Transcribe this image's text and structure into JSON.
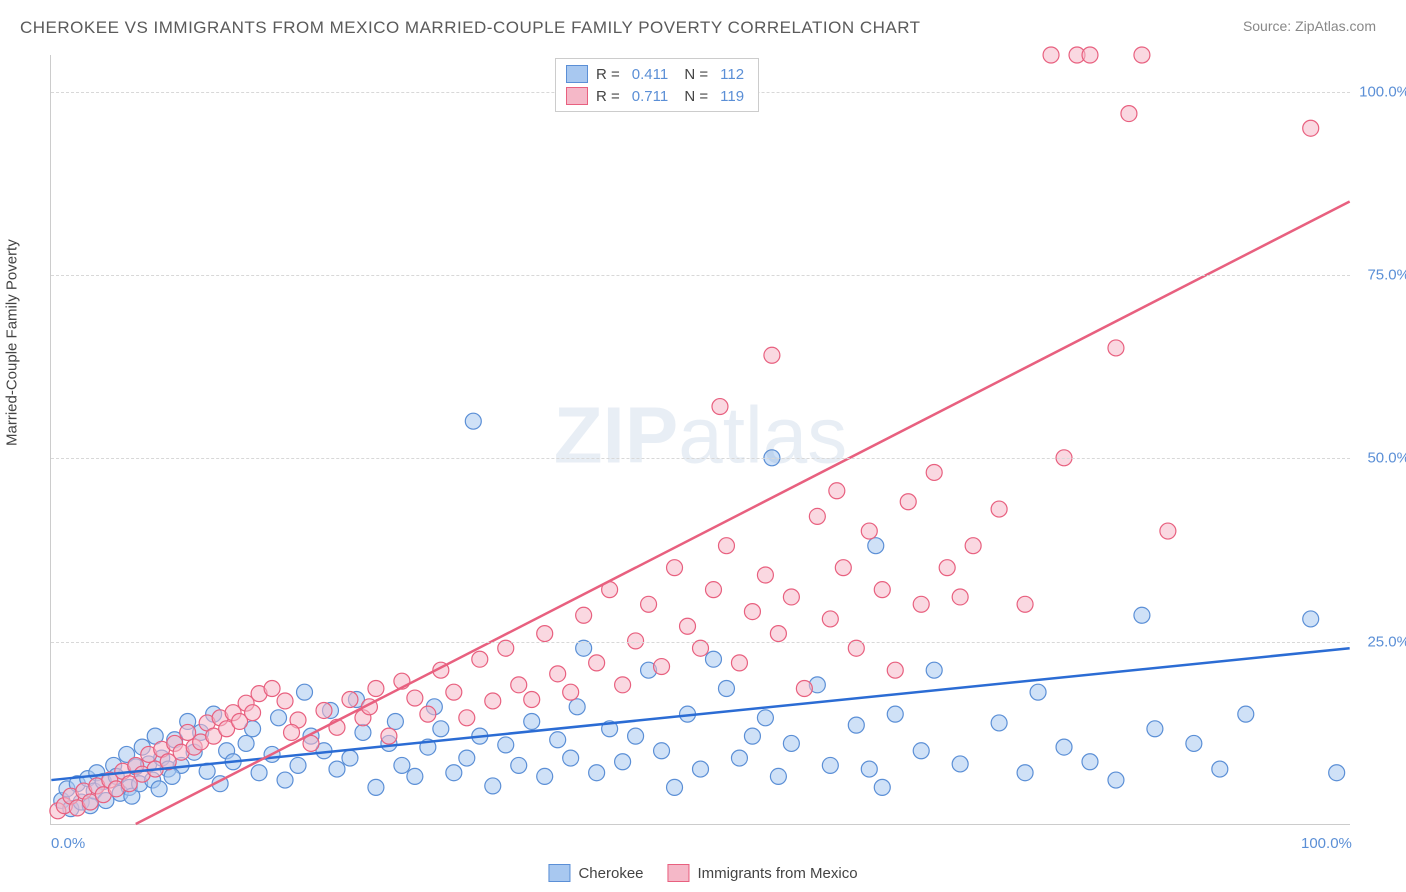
{
  "title": "CHEROKEE VS IMMIGRANTS FROM MEXICO MARRIED-COUPLE FAMILY POVERTY CORRELATION CHART",
  "source": "Source: ZipAtlas.com",
  "watermark": "ZIPatlas",
  "y_axis_label": "Married-Couple Family Poverty",
  "chart": {
    "type": "scatter",
    "xlim": [
      0,
      100
    ],
    "ylim": [
      0,
      105
    ],
    "x_ticks": [
      {
        "v": 0,
        "label": "0.0%"
      },
      {
        "v": 100,
        "label": "100.0%"
      }
    ],
    "y_ticks": [
      {
        "v": 25,
        "label": "25.0%"
      },
      {
        "v": 50,
        "label": "50.0%"
      },
      {
        "v": 75,
        "label": "75.0%"
      },
      {
        "v": 100,
        "label": "100.0%"
      }
    ],
    "grid_color": "#d8d8d8",
    "background_color": "#ffffff",
    "marker_radius": 8,
    "marker_opacity": 0.55,
    "line_width": 2.5,
    "series": [
      {
        "name": "Cherokee",
        "color_fill": "#a8c8f0",
        "color_stroke": "#5b8fd6",
        "line_color": "#2b6cd4",
        "R": 0.411,
        "N": 112,
        "trend": {
          "x1": 0,
          "y1": 6,
          "x2": 100,
          "y2": 24
        },
        "points": [
          [
            0.8,
            3.2
          ],
          [
            1.2,
            4.8
          ],
          [
            1.5,
            2.1
          ],
          [
            2,
            5.5
          ],
          [
            2.3,
            3
          ],
          [
            2.8,
            6.2
          ],
          [
            3,
            2.5
          ],
          [
            3.5,
            7
          ],
          [
            3.3,
            4.5
          ],
          [
            4,
            5.8
          ],
          [
            4.2,
            3.2
          ],
          [
            4.8,
            8
          ],
          [
            5,
            6.5
          ],
          [
            5.3,
            4.2
          ],
          [
            5.8,
            9.5
          ],
          [
            6,
            5
          ],
          [
            6.5,
            7.8
          ],
          [
            6.2,
            3.8
          ],
          [
            7,
            10.5
          ],
          [
            6.8,
            5.5
          ],
          [
            7.5,
            8.2
          ],
          [
            8,
            12
          ],
          [
            7.8,
            6
          ],
          [
            8.5,
            9
          ],
          [
            9,
            7.5
          ],
          [
            8.3,
            4.8
          ],
          [
            9.5,
            11.5
          ],
          [
            10,
            8
          ],
          [
            10.5,
            14
          ],
          [
            9.3,
            6.5
          ],
          [
            11,
            9.8
          ],
          [
            12,
            7.2
          ],
          [
            11.5,
            12.5
          ],
          [
            13,
            5.5
          ],
          [
            13.5,
            10
          ],
          [
            14,
            8.5
          ],
          [
            12.5,
            15
          ],
          [
            15,
            11
          ],
          [
            16,
            7
          ],
          [
            15.5,
            13
          ],
          [
            17,
            9.5
          ],
          [
            18,
            6
          ],
          [
            17.5,
            14.5
          ],
          [
            19,
            8
          ],
          [
            20,
            12
          ],
          [
            19.5,
            18
          ],
          [
            21,
            10
          ],
          [
            22,
            7.5
          ],
          [
            21.5,
            15.5
          ],
          [
            23,
            9
          ],
          [
            24,
            12.5
          ],
          [
            25,
            5
          ],
          [
            23.5,
            17
          ],
          [
            26,
            11
          ],
          [
            27,
            8
          ],
          [
            28,
            6.5
          ],
          [
            26.5,
            14
          ],
          [
            29,
            10.5
          ],
          [
            30,
            13
          ],
          [
            31,
            7
          ],
          [
            29.5,
            16
          ],
          [
            32,
            9
          ],
          [
            33,
            12
          ],
          [
            34,
            5.2
          ],
          [
            35,
            10.8
          ],
          [
            32.5,
            55
          ],
          [
            36,
            8
          ],
          [
            37,
            14
          ],
          [
            38,
            6.5
          ],
          [
            39,
            11.5
          ],
          [
            40,
            9
          ],
          [
            40.5,
            16
          ],
          [
            41,
            24
          ],
          [
            42,
            7
          ],
          [
            43,
            13
          ],
          [
            44,
            8.5
          ],
          [
            45,
            12
          ],
          [
            46,
            21
          ],
          [
            47,
            10
          ],
          [
            48,
            5
          ],
          [
            49,
            15
          ],
          [
            50,
            7.5
          ],
          [
            51,
            22.5
          ],
          [
            52,
            18.5
          ],
          [
            53,
            9
          ],
          [
            54,
            12
          ],
          [
            55,
            14.5
          ],
          [
            55.5,
            50
          ],
          [
            56,
            6.5
          ],
          [
            57,
            11
          ],
          [
            59,
            19
          ],
          [
            60,
            8
          ],
          [
            62,
            13.5
          ],
          [
            63,
            7.5
          ],
          [
            63.5,
            38
          ],
          [
            64,
            5
          ],
          [
            65,
            15
          ],
          [
            67,
            10
          ],
          [
            68,
            21
          ],
          [
            70,
            8.2
          ],
          [
            73,
            13.8
          ],
          [
            75,
            7
          ],
          [
            76,
            18
          ],
          [
            78,
            10.5
          ],
          [
            80,
            8.5
          ],
          [
            82,
            6
          ],
          [
            84,
            28.5
          ],
          [
            85,
            13
          ],
          [
            88,
            11
          ],
          [
            90,
            7.5
          ],
          [
            92,
            15
          ],
          [
            97,
            28
          ],
          [
            99,
            7
          ]
        ]
      },
      {
        "name": "Immigrants from Mexico",
        "color_fill": "#f5b8c8",
        "color_stroke": "#e8607f",
        "line_color": "#e8607f",
        "R": 0.711,
        "N": 119,
        "trend": {
          "x1": 6.5,
          "y1": 0,
          "x2": 100,
          "y2": 85
        },
        "points": [
          [
            0.5,
            1.8
          ],
          [
            1,
            2.5
          ],
          [
            1.5,
            3.8
          ],
          [
            2,
            2.2
          ],
          [
            2.5,
            4.5
          ],
          [
            3,
            3
          ],
          [
            3.5,
            5.2
          ],
          [
            4,
            4
          ],
          [
            4.5,
            6
          ],
          [
            5,
            4.8
          ],
          [
            5.5,
            7.2
          ],
          [
            6,
            5.5
          ],
          [
            6.5,
            8
          ],
          [
            7,
            6.8
          ],
          [
            7.5,
            9.5
          ],
          [
            8,
            7.5
          ],
          [
            8.5,
            10.2
          ],
          [
            9,
            8.5
          ],
          [
            9.5,
            11
          ],
          [
            10,
            9.8
          ],
          [
            10.5,
            12.5
          ],
          [
            11,
            10.5
          ],
          [
            12,
            13.8
          ],
          [
            11.5,
            11.2
          ],
          [
            13,
            14.5
          ],
          [
            12.5,
            12
          ],
          [
            14,
            15.2
          ],
          [
            13.5,
            13
          ],
          [
            15,
            16.5
          ],
          [
            14.5,
            14
          ],
          [
            16,
            17.8
          ],
          [
            15.5,
            15.2
          ],
          [
            17,
            18.5
          ],
          [
            18,
            16.8
          ],
          [
            19,
            14.2
          ],
          [
            18.5,
            12.5
          ],
          [
            20,
            11
          ],
          [
            21,
            15.5
          ],
          [
            22,
            13.2
          ],
          [
            23,
            17
          ],
          [
            24,
            14.5
          ],
          [
            25,
            18.5
          ],
          [
            24.5,
            16
          ],
          [
            26,
            12
          ],
          [
            27,
            19.5
          ],
          [
            28,
            17.2
          ],
          [
            29,
            15
          ],
          [
            30,
            21
          ],
          [
            31,
            18
          ],
          [
            32,
            14.5
          ],
          [
            33,
            22.5
          ],
          [
            34,
            16.8
          ],
          [
            35,
            24
          ],
          [
            36,
            19
          ],
          [
            37,
            17
          ],
          [
            38,
            26
          ],
          [
            39,
            20.5
          ],
          [
            40,
            18
          ],
          [
            41,
            28.5
          ],
          [
            42,
            22
          ],
          [
            43,
            32
          ],
          [
            44,
            19
          ],
          [
            45,
            25
          ],
          [
            46,
            30
          ],
          [
            47,
            21.5
          ],
          [
            48,
            35
          ],
          [
            49,
            27
          ],
          [
            50,
            24
          ],
          [
            52,
            38
          ],
          [
            51,
            32
          ],
          [
            51.5,
            57
          ],
          [
            53,
            22
          ],
          [
            54,
            29
          ],
          [
            55,
            34
          ],
          [
            56,
            26
          ],
          [
            55.5,
            64
          ],
          [
            57,
            31
          ],
          [
            58,
            18.5
          ],
          [
            59,
            42
          ],
          [
            60,
            28
          ],
          [
            60.5,
            45.5
          ],
          [
            61,
            35
          ],
          [
            62,
            24
          ],
          [
            63,
            40
          ],
          [
            64,
            32
          ],
          [
            65,
            21
          ],
          [
            66,
            44
          ],
          [
            67,
            30
          ],
          [
            68,
            48
          ],
          [
            69,
            35
          ],
          [
            70,
            31
          ],
          [
            71,
            38
          ],
          [
            73,
            43
          ],
          [
            75,
            30
          ],
          [
            77,
            105
          ],
          [
            78,
            50
          ],
          [
            79,
            105
          ],
          [
            80,
            105
          ],
          [
            82,
            65
          ],
          [
            83,
            97
          ],
          [
            84,
            105
          ],
          [
            86,
            40
          ],
          [
            97,
            95
          ]
        ]
      }
    ]
  },
  "legend_bottom": [
    {
      "label": "Cherokee",
      "fill": "#a8c8f0",
      "stroke": "#5b8fd6"
    },
    {
      "label": "Immigrants from Mexico",
      "fill": "#f5b8c8",
      "stroke": "#e8607f"
    }
  ]
}
